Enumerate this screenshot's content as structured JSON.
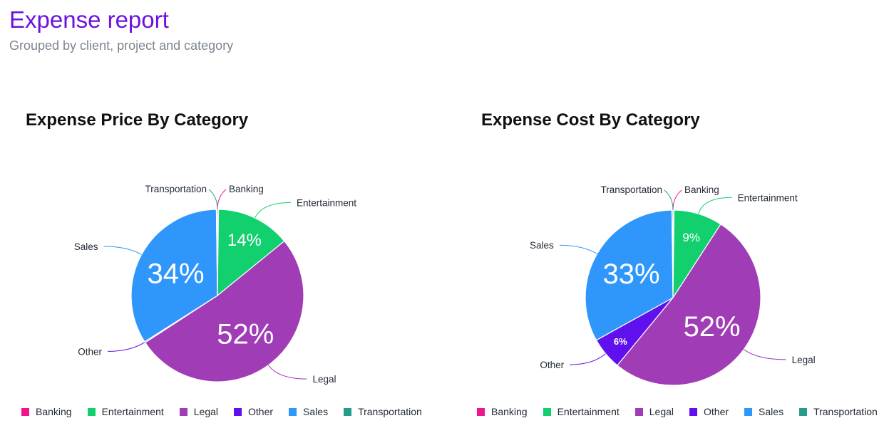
{
  "header": {
    "title": "Expense report",
    "subtitle": "Grouped by client, project and category"
  },
  "colors": {
    "Banking": "#f0158c",
    "Entertainment": "#12d06d",
    "Legal": "#a03cb6",
    "Other": "#6010ec",
    "Sales": "#2f97fc",
    "Transportation": "#249e8b"
  },
  "chart_data": [
    {
      "type": "pie",
      "title": "Expense Price By Category",
      "categories": [
        "Banking",
        "Entertainment",
        "Legal",
        "Other",
        "Sales",
        "Transportation"
      ],
      "values": [
        0.2,
        14,
        52,
        0.2,
        34,
        0.2
      ],
      "slice_labels": [
        "",
        "14%",
        "52%",
        "",
        "34%",
        ""
      ],
      "legend_position": "bottom"
    },
    {
      "type": "pie",
      "title": "Expense Cost By Category",
      "categories": [
        "Banking",
        "Entertainment",
        "Legal",
        "Other",
        "Sales",
        "Transportation"
      ],
      "values": [
        0.2,
        9,
        52,
        6,
        33,
        0.2
      ],
      "slice_labels": [
        "",
        "9%",
        "52%",
        "6%",
        "33%",
        ""
      ],
      "legend_position": "bottom"
    }
  ]
}
